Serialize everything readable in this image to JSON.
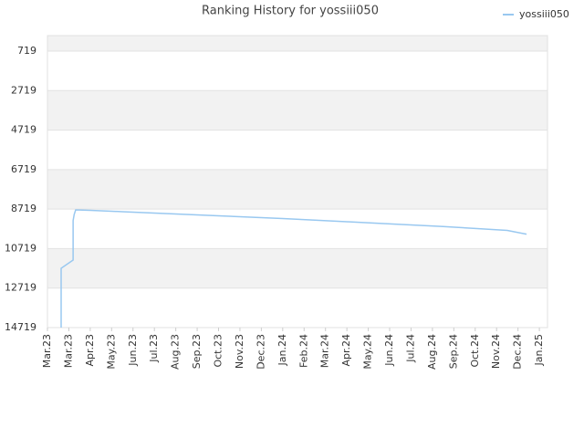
{
  "chart_data": {
    "type": "line",
    "title": "Ranking History for yossiii050",
    "x": [
      0.64,
      0.64,
      1.2,
      1.2,
      1.25,
      1.32,
      2,
      3.5,
      5,
      6.5,
      8,
      9.5,
      11,
      12.5,
      14,
      15.5,
      17,
      18.5,
      20,
      21.5,
      22.4
    ],
    "series": [
      {
        "name": "yossiii050",
        "color": "#99c8f0",
        "values": [
          14719,
          11717,
          11300,
          9300,
          8990,
          8760,
          8780,
          8850,
          8920,
          8990,
          9060,
          9130,
          9200,
          9280,
          9360,
          9440,
          9520,
          9600,
          9700,
          9800,
          9990
        ]
      }
    ],
    "xlim": [
      0,
      23.38
    ],
    "xticks": [
      {
        "value": 0,
        "label": "Mar.23"
      },
      {
        "value": 1,
        "label": "Mar.23"
      },
      {
        "value": 2,
        "label": "Apr.23"
      },
      {
        "value": 3,
        "label": "May.23"
      },
      {
        "value": 4,
        "label": "Jun.23"
      },
      {
        "value": 5,
        "label": "Jul.23"
      },
      {
        "value": 6,
        "label": "Aug.23"
      },
      {
        "value": 7,
        "label": "Sep.23"
      },
      {
        "value": 8,
        "label": "Oct.23"
      },
      {
        "value": 9,
        "label": "Nov.23"
      },
      {
        "value": 10,
        "label": "Dec.23"
      },
      {
        "value": 11,
        "label": "Jan.24"
      },
      {
        "value": 12,
        "label": "Feb.24"
      },
      {
        "value": 13,
        "label": "Mar.24"
      },
      {
        "value": 14,
        "label": "Apr.24"
      },
      {
        "value": 15,
        "label": "May.24"
      },
      {
        "value": 16,
        "label": "Jun.24"
      },
      {
        "value": 17,
        "label": "Jul.24"
      },
      {
        "value": 18,
        "label": "Aug.24"
      },
      {
        "value": 19,
        "label": "Sep.24"
      },
      {
        "value": 20,
        "label": "Oct.24"
      },
      {
        "value": 21,
        "label": "Nov.24"
      },
      {
        "value": 22,
        "label": "Dec.24"
      },
      {
        "value": 23,
        "label": "Jan.25"
      }
    ],
    "ylim": [
      14719,
      -66
    ],
    "yticks": [
      719,
      2719,
      4719,
      6719,
      8719,
      10719,
      12719,
      14719
    ],
    "grid": true,
    "legend": "top-right"
  }
}
